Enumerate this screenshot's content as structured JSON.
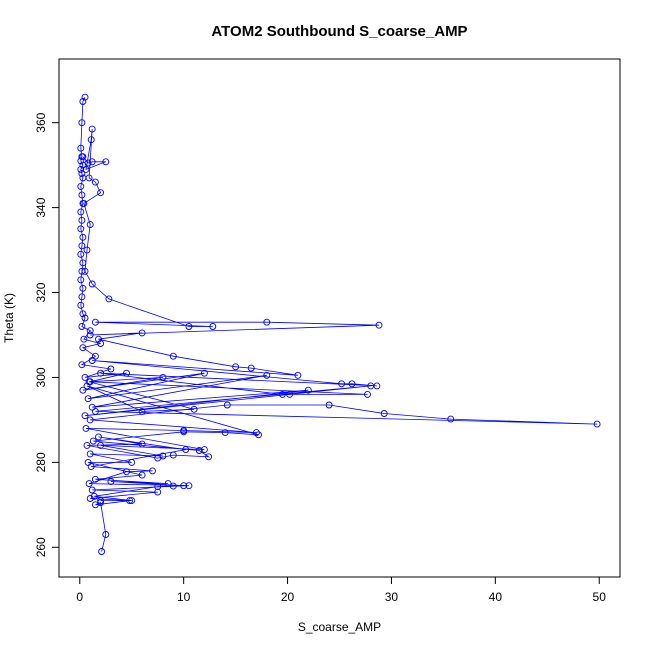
{
  "chart_data": {
    "type": "scatter",
    "title": "ATOM2 Southbound S_coarse_AMP",
    "xlabel": "S_coarse_AMP",
    "ylabel": "Theta (K)",
    "xlim": [
      -2,
      52
    ],
    "ylim": [
      253,
      375
    ],
    "xticks": [
      0,
      10,
      20,
      30,
      40,
      50
    ],
    "yticks": [
      260,
      280,
      300,
      320,
      340,
      360
    ],
    "grid": false,
    "legend": "none",
    "color": "#0000ff",
    "marker": "open-circle",
    "connected": true,
    "series": [
      {
        "points": [
          [
            0.5,
            366
          ],
          [
            0.3,
            365
          ],
          [
            0.2,
            360
          ],
          [
            0.1,
            354
          ],
          [
            0.2,
            352
          ],
          [
            0.1,
            351
          ],
          [
            0.3,
            350
          ],
          [
            0.1,
            349
          ],
          [
            0.2,
            348
          ],
          [
            0.3,
            347
          ],
          [
            0.1,
            345
          ],
          [
            0.2,
            343
          ],
          [
            0.3,
            341
          ],
          [
            0.1,
            339
          ],
          [
            0.2,
            337
          ],
          [
            0.1,
            335
          ],
          [
            0.3,
            333
          ],
          [
            0.2,
            331
          ],
          [
            0.1,
            329
          ],
          [
            0.3,
            327
          ],
          [
            0.2,
            325
          ],
          [
            0.1,
            323
          ],
          [
            0.3,
            321
          ],
          [
            0.2,
            319
          ],
          [
            0.1,
            317
          ],
          [
            0.3,
            315
          ],
          [
            0.5,
            314
          ],
          [
            0.2,
            312
          ],
          [
            1.0,
            311
          ],
          [
            0.4,
            309
          ],
          [
            2.0,
            308
          ],
          [
            0.3,
            307
          ],
          [
            1.5,
            305
          ],
          [
            0.2,
            303
          ],
          [
            3.0,
            302
          ],
          [
            0.5,
            300
          ],
          [
            4.5,
            301
          ],
          [
            1.0,
            299
          ],
          [
            8.0,
            300
          ],
          [
            0.3,
            297
          ],
          [
            12.0,
            301
          ],
          [
            0.8,
            295
          ],
          [
            18.0,
            300.5
          ],
          [
            1.2,
            293
          ],
          [
            22.0,
            297
          ],
          [
            0.5,
            291
          ],
          [
            28.0,
            298
          ],
          [
            1.5,
            292
          ],
          [
            49.8,
            289
          ],
          [
            35.7,
            290.2
          ],
          [
            29.3,
            291.5
          ],
          [
            24.0,
            293.5
          ],
          [
            14.2,
            293.5
          ],
          [
            1.0,
            290
          ],
          [
            17.0,
            287
          ],
          [
            10.0,
            287.5
          ],
          [
            0.6,
            288
          ],
          [
            12.0,
            283
          ],
          [
            2.0,
            284
          ],
          [
            8.0,
            281.5
          ],
          [
            1.0,
            282
          ],
          [
            5.0,
            280
          ],
          [
            0.8,
            280
          ],
          [
            6.0,
            277
          ],
          [
            1.5,
            276
          ],
          [
            8.5,
            275
          ],
          [
            3.0,
            275.5
          ],
          [
            10.0,
            274.5
          ],
          [
            1.2,
            273.5
          ],
          [
            7.5,
            273
          ],
          [
            1.0,
            271.5
          ],
          [
            4.8,
            271
          ],
          [
            1.5,
            270
          ],
          [
            2.0,
            270.5
          ],
          [
            2.5,
            263
          ],
          [
            2.1,
            259
          ]
        ]
      },
      {
        "points": [
          [
            0.3,
            352
          ],
          [
            0.8,
            350.5
          ],
          [
            1.2,
            350.8
          ],
          [
            2.5,
            350.8
          ],
          [
            0.6,
            349
          ],
          [
            1.1,
            356
          ],
          [
            1.2,
            358.5
          ],
          [
            0.9,
            347
          ],
          [
            1.5,
            346
          ],
          [
            2.0,
            343.5
          ],
          [
            0.4,
            341
          ],
          [
            1.0,
            336
          ],
          [
            0.7,
            330
          ],
          [
            0.5,
            325
          ],
          [
            1.2,
            322
          ],
          [
            2.8,
            318.5
          ],
          [
            10.5,
            312
          ],
          [
            12.8,
            312
          ],
          [
            1.5,
            313
          ],
          [
            18.0,
            313
          ],
          [
            28.8,
            312.3
          ],
          [
            1.0,
            310
          ],
          [
            6.0,
            310.5
          ],
          [
            1.8,
            309
          ],
          [
            9.0,
            305
          ],
          [
            15.0,
            302.5
          ],
          [
            16.5,
            302.2
          ],
          [
            21.0,
            300.5
          ],
          [
            1.2,
            304
          ],
          [
            25.2,
            298.5
          ],
          [
            26.2,
            298.5
          ],
          [
            28.6,
            298
          ],
          [
            2.0,
            301
          ],
          [
            19.5,
            296
          ],
          [
            20.2,
            296
          ],
          [
            27.7,
            296
          ],
          [
            0.9,
            299
          ],
          [
            11.0,
            292.5
          ],
          [
            6.0,
            292
          ],
          [
            0.7,
            298
          ],
          [
            17.2,
            286.5
          ],
          [
            14.0,
            287
          ],
          [
            10.0,
            287.2
          ],
          [
            1.3,
            285
          ],
          [
            11.5,
            282.8
          ],
          [
            12.4,
            281.3
          ],
          [
            9.0,
            281.7
          ],
          [
            7.5,
            281
          ],
          [
            0.7,
            284
          ],
          [
            6.0,
            284.3
          ],
          [
            1.8,
            286
          ],
          [
            10.2,
            283
          ],
          [
            1.1,
            279
          ],
          [
            7.0,
            278
          ],
          [
            4.5,
            277.8
          ],
          [
            0.9,
            275
          ],
          [
            10.5,
            274.5
          ],
          [
            9.0,
            274.4
          ],
          [
            7.5,
            274.3
          ],
          [
            1.4,
            272
          ],
          [
            5.0,
            271
          ],
          [
            2.0,
            271
          ]
        ]
      }
    ]
  }
}
